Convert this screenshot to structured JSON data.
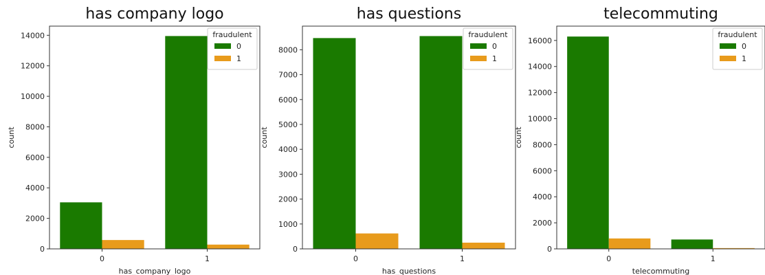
{
  "colors": {
    "series_0": "#1a7a00",
    "series_1": "#e89b1c",
    "axes": "#333333"
  },
  "chart_data": [
    {
      "type": "bar",
      "title": "has company logo",
      "xlabel": "has_company_logo",
      "ylabel": "count",
      "categories": [
        "0",
        "1"
      ],
      "series": [
        {
          "name": "0",
          "values": [
            3050,
            13950
          ]
        },
        {
          "name": "1",
          "values": [
            580,
            280
          ]
        }
      ],
      "yticks": [
        0,
        2000,
        4000,
        6000,
        8000,
        10000,
        12000,
        14000
      ],
      "ylim": [
        0,
        14600
      ],
      "legend": {
        "title": "fraudulent",
        "placement": "top-right"
      },
      "grid": false
    },
    {
      "type": "bar",
      "title": "has questions",
      "xlabel": "has_questions",
      "ylabel": "count",
      "categories": [
        "0",
        "1"
      ],
      "series": [
        {
          "name": "0",
          "values": [
            8470,
            8550
          ]
        },
        {
          "name": "1",
          "values": [
            620,
            250
          ]
        }
      ],
      "yticks": [
        0,
        1000,
        2000,
        3000,
        4000,
        5000,
        6000,
        7000,
        8000
      ],
      "ylim": [
        0,
        8950
      ],
      "legend": {
        "title": "fraudulent",
        "placement": "top-right"
      },
      "grid": false
    },
    {
      "type": "bar",
      "title": "telecommuting",
      "xlabel": "telecommuting",
      "ylabel": "count",
      "categories": [
        "0",
        "1"
      ],
      "series": [
        {
          "name": "0",
          "values": [
            16300,
            720
          ]
        },
        {
          "name": "1",
          "values": [
            800,
            60
          ]
        }
      ],
      "yticks": [
        0,
        2000,
        4000,
        6000,
        8000,
        10000,
        12000,
        14000,
        16000
      ],
      "ylim": [
        0,
        17100
      ],
      "legend": {
        "title": "fraudulent",
        "placement": "top-right"
      },
      "grid": false
    }
  ]
}
